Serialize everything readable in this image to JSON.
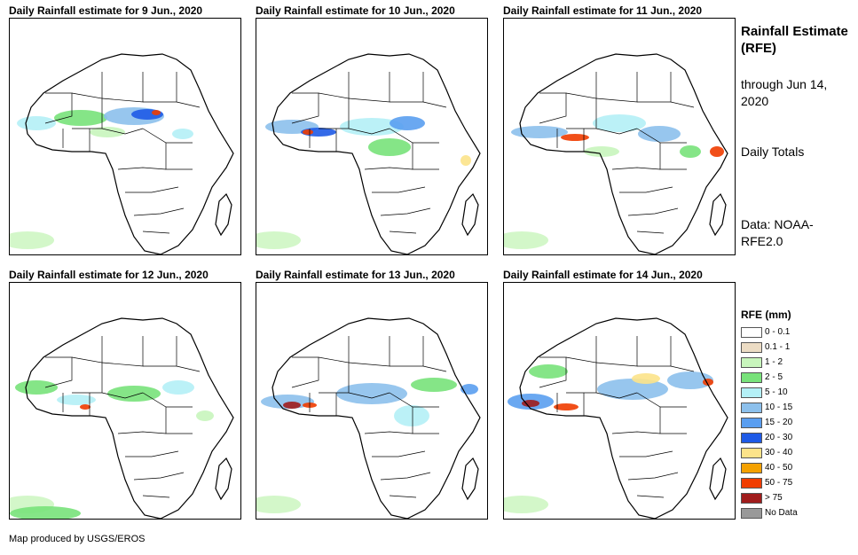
{
  "panels": [
    {
      "title": "Daily Rainfall estimate for 9 Jun., 2020"
    },
    {
      "title": "Daily Rainfall estimate for 10 Jun., 2020"
    },
    {
      "title": "Daily Rainfall estimate for 11 Jun., 2020"
    },
    {
      "title": "Daily Rainfall estimate for 12 Jun., 2020"
    },
    {
      "title": "Daily Rainfall estimate for 13 Jun., 2020"
    },
    {
      "title": "Daily Rainfall estimate for 14 Jun., 2020"
    }
  ],
  "sidebar": {
    "title": "Rainfall Estimate (RFE)",
    "through": "through Jun 14, 2020",
    "totals": "Daily Totals",
    "data_source": "Data: NOAA-RFE2.0"
  },
  "legend": {
    "title": "RFE (mm)",
    "items": [
      {
        "label": "0 - 0.1",
        "color": "#ffffff"
      },
      {
        "label": "0.1 - 1",
        "color": "#ecdcc4"
      },
      {
        "label": "1 - 2",
        "color": "#c8f5bc"
      },
      {
        "label": "2 - 5",
        "color": "#78e27a"
      },
      {
        "label": "5 - 10",
        "color": "#b4f0f6"
      },
      {
        "label": "10 - 15",
        "color": "#8cc0ec"
      },
      {
        "label": "15 - 20",
        "color": "#5a9ef0"
      },
      {
        "label": "20 - 30",
        "color": "#1e5ae6"
      },
      {
        "label": "30 - 40",
        "color": "#fce38a"
      },
      {
        "label": "40 - 50",
        "color": "#f4a100"
      },
      {
        "label": "50 - 75",
        "color": "#f03c00"
      },
      {
        "label": "> 75",
        "color": "#a01c1c"
      },
      {
        "label": "No Data",
        "color": "#999999"
      }
    ]
  },
  "footer": "Map produced by USGS/EROS"
}
